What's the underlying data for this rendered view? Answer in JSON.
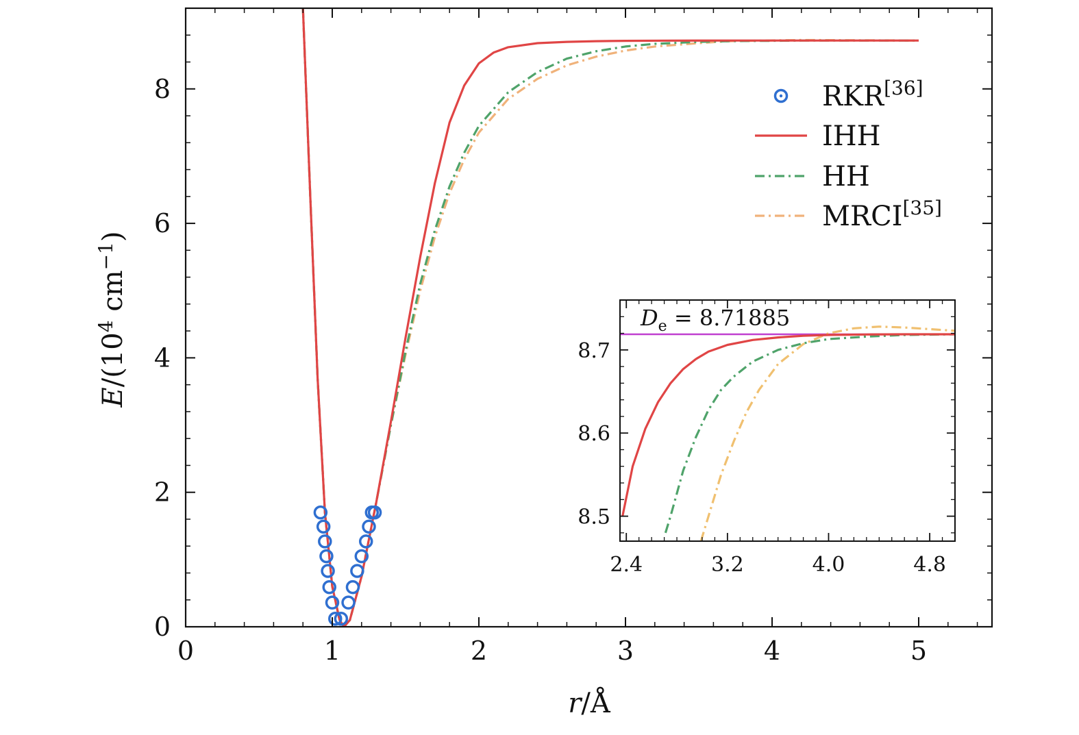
{
  "chart_data": [
    {
      "type": "line",
      "xlabel": "r/Å",
      "ylabel": "E/(10⁴ cm⁻¹)",
      "xlim": [
        0,
        5.5
      ],
      "ylim": [
        0,
        9.2
      ],
      "xticks": [
        0,
        1,
        2,
        3,
        4,
        5
      ],
      "yticks": [
        0,
        2,
        4,
        6,
        8
      ],
      "legend_position": "top-right",
      "series": [
        {
          "name": "RKR[36]",
          "style": "open-circle-markers",
          "color": "#2f6fd0",
          "x": [
            0.92,
            0.94,
            0.95,
            0.96,
            0.97,
            0.98,
            1.0,
            1.02,
            1.06,
            1.11,
            1.14,
            1.17,
            1.2,
            1.23,
            1.25,
            1.27,
            1.29
          ],
          "y": [
            1.7,
            1.49,
            1.27,
            1.05,
            0.83,
            0.59,
            0.36,
            0.12,
            0.12,
            0.36,
            0.59,
            0.83,
            1.05,
            1.27,
            1.49,
            1.7,
            1.7
          ]
        },
        {
          "name": "IHH",
          "style": "solid",
          "color": "#e04545",
          "x": [
            0.8,
            0.85,
            0.9,
            0.95,
            1.0,
            1.05,
            1.08,
            1.12,
            1.2,
            1.3,
            1.4,
            1.5,
            1.6,
            1.7,
            1.8,
            1.9,
            2.0,
            2.1,
            2.2,
            2.4,
            2.6,
            2.8,
            3.0,
            3.3,
            3.7,
            4.2,
            5.0
          ],
          "y": [
            9.2,
            6.4,
            3.7,
            1.7,
            0.6,
            0.1,
            0.0,
            0.1,
            0.75,
            1.85,
            3.05,
            4.3,
            5.5,
            6.6,
            7.5,
            8.05,
            8.38,
            8.54,
            8.62,
            8.68,
            8.7,
            8.71,
            8.715,
            8.718,
            8.7188,
            8.7188,
            8.7188
          ]
        },
        {
          "name": "HH",
          "style": "dash-dot",
          "color": "#4fa36a",
          "x": [
            0.8,
            0.85,
            0.9,
            0.95,
            1.0,
            1.05,
            1.08,
            1.12,
            1.2,
            1.3,
            1.4,
            1.5,
            1.6,
            1.7,
            1.8,
            1.9,
            2.0,
            2.2,
            2.4,
            2.6,
            2.8,
            3.0,
            3.2,
            3.5,
            3.7,
            4.2,
            5.0
          ],
          "y": [
            9.2,
            6.4,
            3.7,
            1.7,
            0.6,
            0.1,
            0.0,
            0.1,
            0.75,
            1.85,
            3.0,
            4.1,
            5.1,
            5.9,
            6.55,
            7.05,
            7.45,
            7.95,
            8.25,
            8.45,
            8.56,
            8.63,
            8.67,
            8.7,
            8.71,
            8.7188,
            8.7188
          ]
        },
        {
          "name": "MRCI[35]",
          "style": "dash-dot",
          "color": "#f0b27a",
          "x": [
            0.8,
            0.85,
            0.9,
            0.95,
            1.0,
            1.05,
            1.08,
            1.12,
            1.2,
            1.3,
            1.4,
            1.5,
            1.6,
            1.7,
            1.8,
            1.9,
            2.0,
            2.2,
            2.4,
            2.6,
            2.8,
            3.0,
            3.2,
            3.5,
            3.7,
            4.2,
            5.0
          ],
          "y": [
            9.2,
            6.4,
            3.7,
            1.7,
            0.6,
            0.1,
            0.0,
            0.1,
            0.75,
            1.85,
            3.0,
            4.05,
            5.0,
            5.8,
            6.45,
            6.95,
            7.35,
            7.85,
            8.15,
            8.35,
            8.48,
            8.57,
            8.63,
            8.68,
            8.71,
            8.727,
            8.7188
          ]
        }
      ]
    },
    {
      "type": "line",
      "role": "inset",
      "xlim": [
        2.35,
        5.0
      ],
      "ylim": [
        8.47,
        8.76
      ],
      "xticks": [
        2.4,
        3.2,
        4.0,
        4.8
      ],
      "xtick_labels": [
        "2.4",
        "3.2",
        "4.0",
        "4.8"
      ],
      "yticks": [
        8.5,
        8.6,
        8.7
      ],
      "ytick_labels": [
        "8.5",
        "8.6",
        "8.7"
      ],
      "annotation": "De = 8.71885",
      "reference_line": {
        "y": 8.71885,
        "color": "#c040d0"
      },
      "series": [
        {
          "name": "IHH",
          "color": "#e04545",
          "style": "solid",
          "x": [
            2.37,
            2.45,
            2.55,
            2.65,
            2.75,
            2.85,
            2.95,
            3.05,
            3.2,
            3.4,
            3.6,
            3.8,
            4.0,
            4.3,
            4.6,
            5.0
          ],
          "y": [
            8.5,
            8.56,
            8.605,
            8.637,
            8.66,
            8.677,
            8.689,
            8.698,
            8.706,
            8.712,
            8.715,
            8.717,
            8.718,
            8.7186,
            8.7188,
            8.7188
          ]
        },
        {
          "name": "HH",
          "color": "#4fa36a",
          "style": "dash-dot",
          "x": [
            2.71,
            2.75,
            2.85,
            2.95,
            3.05,
            3.15,
            3.25,
            3.4,
            3.6,
            3.8,
            4.0,
            4.3,
            4.6,
            5.0
          ],
          "y": [
            8.48,
            8.5,
            8.555,
            8.595,
            8.628,
            8.652,
            8.668,
            8.686,
            8.7,
            8.708,
            8.713,
            8.716,
            8.718,
            8.7188
          ]
        },
        {
          "name": "MRCI[35]",
          "color": "#f0c070",
          "style": "dash-dot",
          "x": [
            2.99,
            3.05,
            3.15,
            3.25,
            3.35,
            3.45,
            3.6,
            3.8,
            4.0,
            4.2,
            4.4,
            4.6,
            4.8,
            5.0
          ],
          "y": [
            8.47,
            8.5,
            8.55,
            8.59,
            8.625,
            8.652,
            8.683,
            8.707,
            8.72,
            8.726,
            8.728,
            8.727,
            8.725,
            8.723
          ]
        }
      ]
    }
  ],
  "legend": [
    {
      "label": "RKR",
      "sup": "[36]"
    },
    {
      "label": "IHH",
      "sup": ""
    },
    {
      "label": "HH",
      "sup": ""
    },
    {
      "label": "MRCI",
      "sup": "[35]"
    }
  ],
  "axis_text": {
    "x_main": "r",
    "x_unit": "/Å",
    "y_main": "E",
    "y_unit_open": "/(10",
    "y_exp": "4",
    "y_unit_mid": " cm",
    "y_exp2": "−1",
    "y_unit_close": ")"
  },
  "inset_text": {
    "de_symbol": "D",
    "de_sub": "e",
    "de_value": " = 8.71885"
  },
  "colors": {
    "rkr": "#2f6fd0",
    "ihh": "#e04545",
    "hh": "#4fa36a",
    "mrci": "#f0b27a",
    "mrci_inset": "#f0c070",
    "de_line": "#c040d0"
  }
}
